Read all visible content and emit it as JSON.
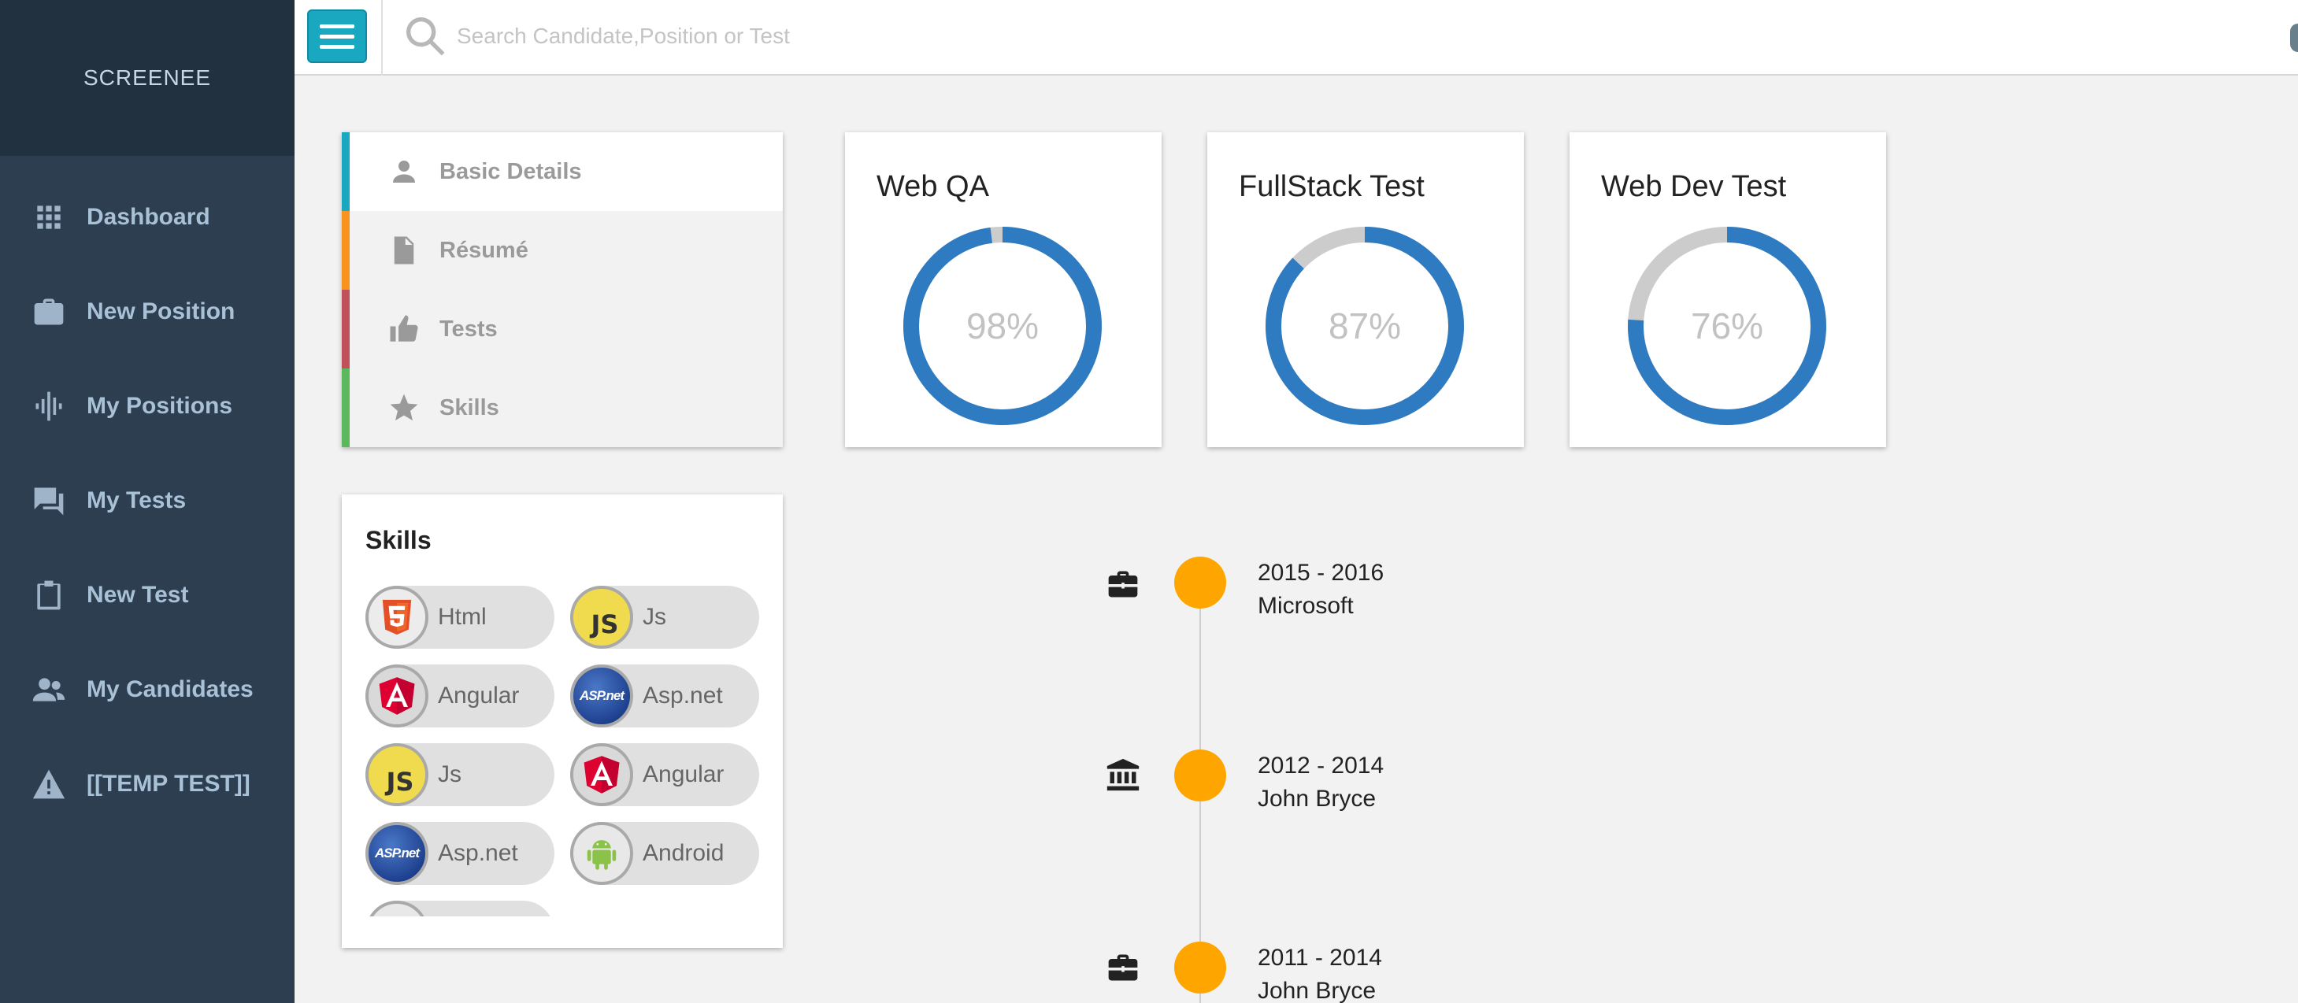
{
  "sidebar": {
    "brand": "SCREENEE",
    "items": [
      {
        "label": "Dashboard",
        "icon": "grid-icon"
      },
      {
        "label": "New Position",
        "icon": "briefcase-icon"
      },
      {
        "label": "My Positions",
        "icon": "waveform-icon"
      },
      {
        "label": "My Tests",
        "icon": "chat-icon"
      },
      {
        "label": "New Test",
        "icon": "clipboard-icon"
      },
      {
        "label": "My Candidates",
        "icon": "people-icon"
      },
      {
        "label": "[[TEMP TEST]]",
        "icon": "warning-icon"
      }
    ]
  },
  "topbar": {
    "search_placeholder": "Search Candidate,Position or Test"
  },
  "profile_tabs": [
    {
      "label": "Basic Details",
      "icon": "person-icon",
      "color": "#19a8c0",
      "active": true
    },
    {
      "label": "Résumé",
      "icon": "document-icon",
      "color": "#f7931e",
      "active": false
    },
    {
      "label": "Tests",
      "icon": "thumbs-up-icon",
      "color": "#c0505a",
      "active": false
    },
    {
      "label": "Skills",
      "icon": "star-icon",
      "color": "#5cb85c",
      "active": false
    }
  ],
  "scores": [
    {
      "title": "Web QA",
      "value": "98%",
      "fraction": 0.98
    },
    {
      "title": "FullStack Test",
      "value": "87%",
      "fraction": 0.87
    },
    {
      "title": "Web Dev Test",
      "value": "76%",
      "fraction": 0.76
    }
  ],
  "colors": {
    "donut_fill": "#2f7bc1",
    "donut_track": "#cccccc",
    "timeline_dot": "#ffa500"
  },
  "skills": {
    "title": "Skills",
    "items": [
      {
        "name": "Html",
        "logo": "html5"
      },
      {
        "name": "Js",
        "logo": "js"
      },
      {
        "name": "Angular",
        "logo": "angular"
      },
      {
        "name": "Asp.net",
        "logo": "aspnet"
      },
      {
        "name": "Js",
        "logo": "js"
      },
      {
        "name": "Angular",
        "logo": "angular"
      },
      {
        "name": "Asp.net",
        "logo": "aspnet"
      },
      {
        "name": "Android",
        "logo": "android"
      }
    ],
    "aspnet_logo_text": "ASP.net",
    "js_logo_text": "JS"
  },
  "timeline": [
    {
      "years": "2015 - 2016",
      "place": "Microsoft",
      "icon": "briefcase-icon"
    },
    {
      "years": "2012 - 2014",
      "place": "John Bryce",
      "icon": "institution-icon"
    },
    {
      "years": "2011 - 2014",
      "place": "John Bryce",
      "icon": "briefcase-icon"
    }
  ]
}
